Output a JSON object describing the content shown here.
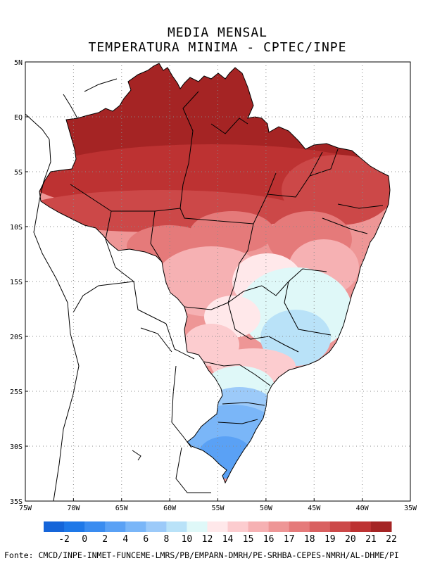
{
  "map": {
    "title_line1": "MEDIA MENSAL",
    "title_line2": "TEMPERATURA MINIMA - CPTEC/INPE",
    "latitude_labels": [
      "5N",
      "EQ",
      "5S",
      "10S",
      "15S",
      "20S",
      "25S",
      "30S",
      "35S"
    ],
    "longitude_labels": [
      "75W",
      "70W",
      "65W",
      "60W",
      "55W",
      "50W",
      "45W",
      "40W",
      "35W"
    ],
    "lat_values": [
      5,
      0,
      -5,
      -10,
      -15,
      -20,
      -25,
      -30,
      -35
    ],
    "lon_values": [
      -75,
      -70,
      -65,
      -60,
      -55,
      -50,
      -45,
      -40,
      -35
    ],
    "extent": {
      "lon": [
        -75,
        -35
      ],
      "lat": [
        -35,
        5
      ]
    },
    "grid": "dotted"
  },
  "legend": {
    "labels": [
      "-2",
      "0",
      "2",
      "4",
      "6",
      "8",
      "10",
      "12",
      "14",
      "15",
      "16",
      "17",
      "18",
      "19",
      "20",
      "21",
      "22"
    ],
    "colors": [
      "#1565d9",
      "#1e78e8",
      "#3a8cf0",
      "#5aa1f5",
      "#7ab6f8",
      "#9ccaf9",
      "#b9e2f8",
      "#dff8f8",
      "#ffe8ea",
      "#fccccf",
      "#f6b1b3",
      "#ee9696",
      "#e57a7a",
      "#d96060",
      "#cc4848",
      "#bd3232",
      "#a52424"
    ]
  },
  "footer": {
    "text": "Fonte: CMCD/INPE-INMET-FUNCEME-LMRS/PB/EMPARN-DMRH/PE-SRHBA-CEPES-NMRH/AL-DHME/PI"
  }
}
